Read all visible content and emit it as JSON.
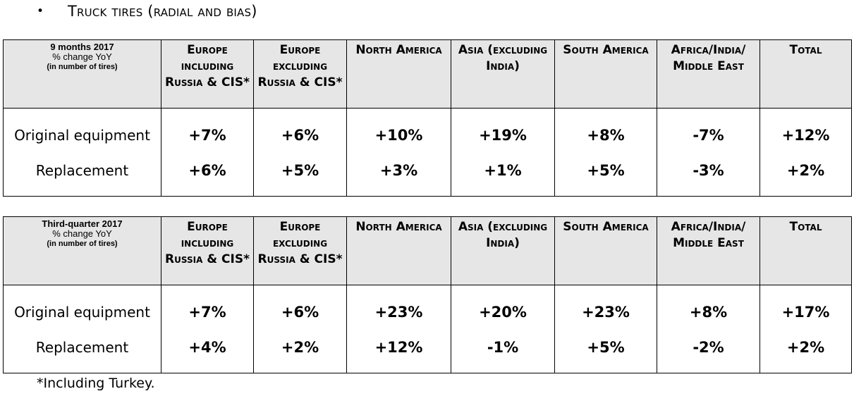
{
  "heading": {
    "bullet": "•",
    "text": "Truck tires (radial and bias)"
  },
  "regions": [
    "Europe including Russia & CIS*",
    "Europe excluding Russia & CIS*",
    "North America",
    "Asia (excluding India)",
    "South America",
    "Africa/India/ Middle East",
    "Total"
  ],
  "tables": [
    {
      "period": "9 months 2017",
      "metric": "% change YoY",
      "unit": "(in number of tires)",
      "rows": [
        {
          "label": "Original equipment",
          "values": [
            "+7%",
            "+6%",
            "+10%",
            "+19%",
            "+8%",
            "-7%",
            "+12%"
          ]
        },
        {
          "label": "Replacement",
          "values": [
            "+6%",
            "+5%",
            "+3%",
            "+1%",
            "+5%",
            "-3%",
            "+2%"
          ]
        }
      ]
    },
    {
      "period": "Third-quarter 2017",
      "metric": "% change YoY",
      "unit": "(in number of tires)",
      "rows": [
        {
          "label": "Original equipment",
          "values": [
            "+7%",
            "+6%",
            "+23%",
            "+20%",
            "+23%",
            "+8%",
            "+17%"
          ]
        },
        {
          "label": "Replacement",
          "values": [
            "+4%",
            "+2%",
            "+12%",
            "-1%",
            "+5%",
            "-2%",
            "+2%"
          ]
        }
      ]
    }
  ],
  "footnote": "*Including Turkey."
}
